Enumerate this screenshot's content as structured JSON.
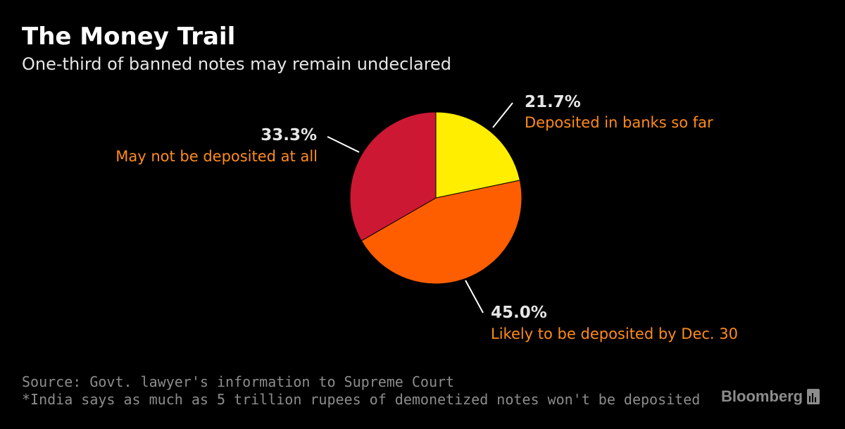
{
  "header": {
    "title": "The Money Trail",
    "subtitle": "One-third of banned notes may remain undeclared"
  },
  "colors": {
    "background": "#000000",
    "label_value": "#e6e6e6",
    "label_text": "#ff8c1a",
    "leader_line": "#ffffff"
  },
  "chart_data": {
    "type": "pie",
    "start_angle_deg": 0,
    "direction": "clockwise",
    "slices": [
      {
        "value": 21.7,
        "value_label": "21.7%",
        "label": "Deposited in banks so far",
        "color": "#ffee00"
      },
      {
        "value": 45.0,
        "value_label": "45.0%",
        "label": "Likely to be deposited by Dec. 30",
        "color": "#ff5e00"
      },
      {
        "value": 33.3,
        "value_label": "33.3%",
        "label": "May not be deposited at all",
        "color": "#cc1833"
      }
    ]
  },
  "footer": {
    "source": "Source: Govt. lawyer's information to Supreme Court",
    "note": "*India says as much as 5 trillion rupees of demonetized notes won't be deposited"
  },
  "brand": {
    "name": "Bloomberg",
    "icon": "bloomberg-bar-chart-icon"
  }
}
